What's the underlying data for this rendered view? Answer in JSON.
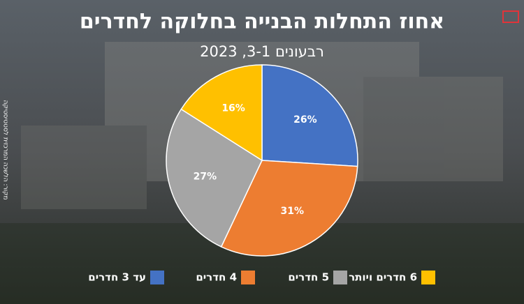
{
  "chart_data": {
    "type": "pie",
    "title": "אחוז התחלות הבנייה בחלוקה לחדרים",
    "subtitle": "רבעונים 3-1, 2023",
    "source": "מקור: הלשכה המרכזית לסטטיסטיקה",
    "categories": [
      "עד 3 חדרים",
      "4 חדרים",
      "5 חדרים",
      "6 חדרים ויותר"
    ],
    "values": [
      26,
      31,
      27,
      16
    ],
    "value_labels": [
      "26%",
      "31%",
      "27%",
      "16%"
    ],
    "colors": [
      "#4472c4",
      "#ed7d31",
      "#a5a5a5",
      "#ffc000"
    ]
  }
}
